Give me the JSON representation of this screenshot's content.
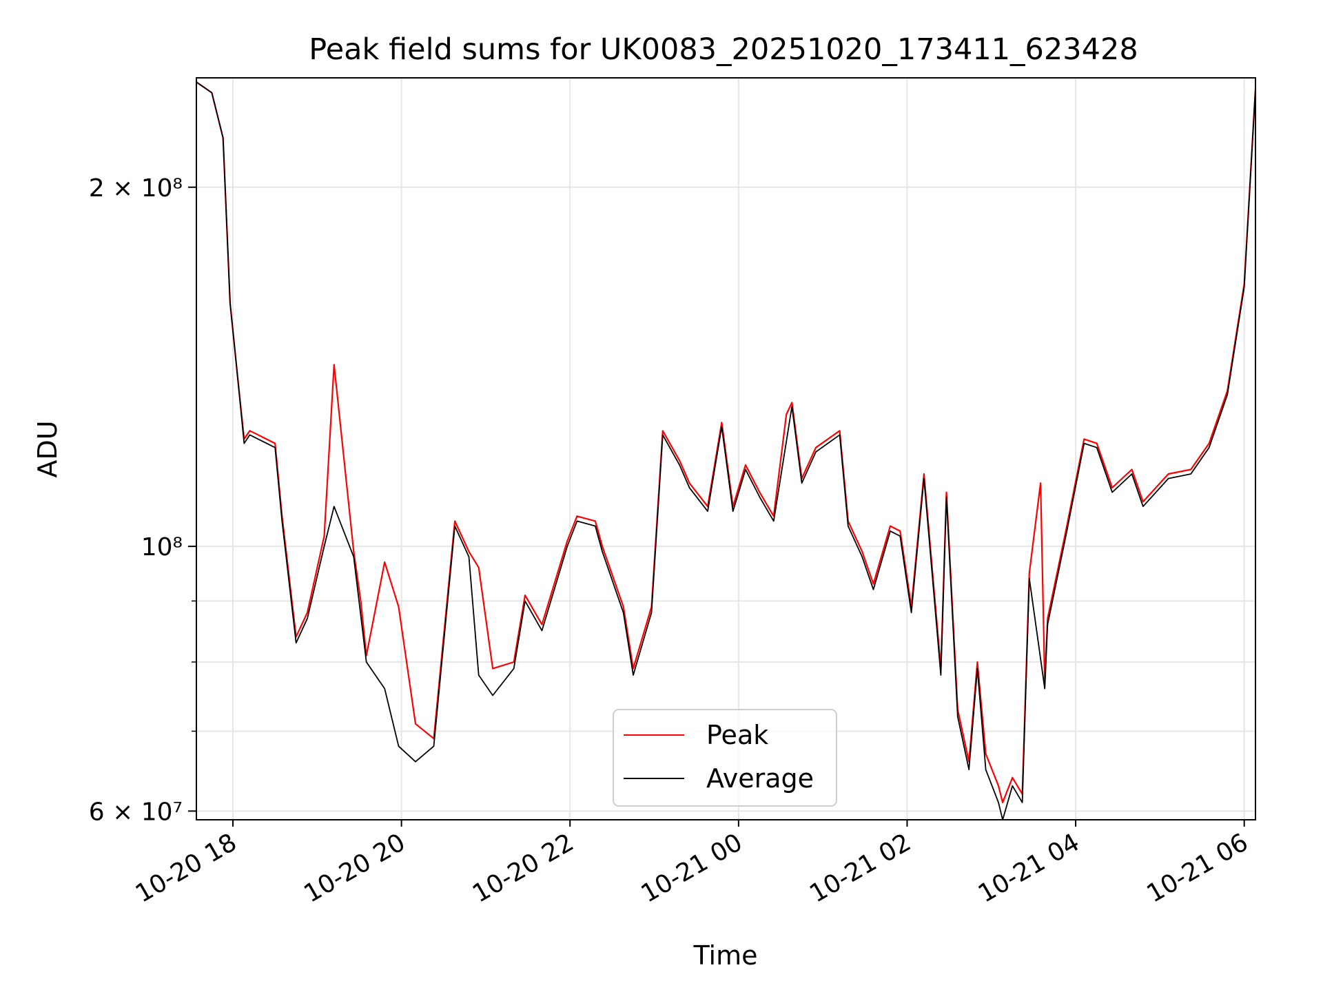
{
  "chart_data": {
    "type": "line",
    "title": "Peak field sums for UK0083_20251020_173411_623428",
    "xlabel": "Time",
    "ylabel": "ADU",
    "yscale": "log",
    "xlim": [
      "2025-10-20 17:34",
      "2025-10-21 06:08"
    ],
    "ylim": [
      59000000,
      247000000
    ],
    "grid": true,
    "legend": {
      "placement": "lower-center",
      "entries": [
        "Peak",
        "Average"
      ]
    },
    "x_ticks": [
      "10-20 18",
      "10-20 20",
      "10-20 22",
      "10-21 00",
      "10-21 02",
      "10-21 04",
      "10-21 06"
    ],
    "y_ticks": [
      {
        "value": 60000000,
        "label": "6 × 10⁷"
      },
      {
        "value": 100000000,
        "label": "10⁸"
      },
      {
        "value": 200000000,
        "label": "2 × 10⁸"
      }
    ],
    "colors": {
      "Peak": "#ff0000",
      "Average": "#000000"
    },
    "series": [
      {
        "name": "Average",
        "x": [
          "2025-10-20 17:34",
          "2025-10-20 17:45",
          "2025-10-20 17:53",
          "2025-10-20 17:58",
          "2025-10-20 18:03",
          "2025-10-20 18:08",
          "2025-10-20 18:12",
          "2025-10-20 18:18",
          "2025-10-20 18:30",
          "2025-10-20 18:35",
          "2025-10-20 18:45",
          "2025-10-20 18:53",
          "2025-10-20 19:05",
          "2025-10-20 19:12",
          "2025-10-20 19:26",
          "2025-10-20 19:35",
          "2025-10-20 19:48",
          "2025-10-20 19:58",
          "2025-10-20 20:10",
          "2025-10-20 20:23",
          "2025-10-20 20:38",
          "2025-10-20 20:48",
          "2025-10-20 20:55",
          "2025-10-20 21:05",
          "2025-10-20 21:20",
          "2025-10-20 21:28",
          "2025-10-20 21:40",
          "2025-10-20 21:58",
          "2025-10-20 22:05",
          "2025-10-20 22:18",
          "2025-10-20 22:23",
          "2025-10-20 22:38",
          "2025-10-20 22:45",
          "2025-10-20 22:58",
          "2025-10-20 23:06",
          "2025-10-20 23:18",
          "2025-10-20 23:25",
          "2025-10-20 23:38",
          "2025-10-20 23:48",
          "2025-10-20 23:56",
          "2025-10-21 00:05",
          "2025-10-21 00:15",
          "2025-10-21 00:25",
          "2025-10-21 00:38",
          "2025-10-21 00:45",
          "2025-10-21 00:55",
          "2025-10-21 01:12",
          "2025-10-21 01:18",
          "2025-10-21 01:28",
          "2025-10-21 01:36",
          "2025-10-21 01:48",
          "2025-10-21 01:55",
          "2025-10-21 02:03",
          "2025-10-21 02:12",
          "2025-10-21 02:24",
          "2025-10-21 02:28",
          "2025-10-21 02:36",
          "2025-10-21 02:44",
          "2025-10-21 02:50",
          "2025-10-21 02:56",
          "2025-10-21 03:05",
          "2025-10-21 03:08",
          "2025-10-21 03:15",
          "2025-10-21 03:22",
          "2025-10-21 03:27",
          "2025-10-21 03:38",
          "2025-10-21 03:40",
          "2025-10-21 03:53",
          "2025-10-21 04:06",
          "2025-10-21 04:15",
          "2025-10-21 04:26",
          "2025-10-21 04:40",
          "2025-10-21 04:48",
          "2025-10-21 05:06",
          "2025-10-21 05:22",
          "2025-10-21 05:35",
          "2025-10-21 05:48",
          "2025-10-21 06:00",
          "2025-10-21 06:08"
        ],
        "y": [
          245000000,
          240000000,
          220000000,
          160000000,
          140000000,
          122000000,
          124000000,
          123000000,
          121000000,
          105000000,
          83000000,
          87000000,
          100000000,
          108000000,
          98000000,
          80000000,
          76000000,
          68000000,
          66000000,
          68000000,
          104000000,
          98000000,
          78000000,
          75000000,
          79000000,
          90000000,
          85000000,
          100000000,
          105000000,
          104000000,
          99000000,
          88000000,
          78000000,
          88000000,
          124000000,
          117000000,
          112000000,
          107000000,
          126000000,
          107000000,
          116000000,
          110000000,
          105000000,
          131000000,
          113000000,
          120000000,
          124000000,
          104000000,
          98000000,
          92000000,
          103000000,
          102000000,
          88000000,
          114000000,
          78000000,
          110000000,
          72000000,
          65000000,
          79000000,
          65000000,
          61000000,
          59000000,
          63000000,
          61000000,
          94000000,
          76000000,
          86000000,
          102000000,
          122000000,
          121000000,
          111000000,
          115000000,
          108000000,
          114000000,
          115000000,
          121000000,
          134000000,
          165000000,
          242000000
        ]
      },
      {
        "name": "Peak",
        "x": [
          "2025-10-20 17:34",
          "2025-10-20 17:45",
          "2025-10-20 17:53",
          "2025-10-20 17:58",
          "2025-10-20 18:03",
          "2025-10-20 18:08",
          "2025-10-20 18:12",
          "2025-10-20 18:18",
          "2025-10-20 18:30",
          "2025-10-20 18:35",
          "2025-10-20 18:45",
          "2025-10-20 18:53",
          "2025-10-20 19:05",
          "2025-10-20 19:12",
          "2025-10-20 19:26",
          "2025-10-20 19:31",
          "2025-10-20 19:35",
          "2025-10-20 19:48",
          "2025-10-20 19:58",
          "2025-10-20 20:10",
          "2025-10-20 20:23",
          "2025-10-20 20:38",
          "2025-10-20 20:48",
          "2025-10-20 20:55",
          "2025-10-20 21:05",
          "2025-10-20 21:20",
          "2025-10-20 21:28",
          "2025-10-20 21:40",
          "2025-10-20 21:58",
          "2025-10-20 22:05",
          "2025-10-20 22:18",
          "2025-10-20 22:23",
          "2025-10-20 22:38",
          "2025-10-20 22:45",
          "2025-10-20 22:58",
          "2025-10-20 23:06",
          "2025-10-20 23:18",
          "2025-10-20 23:25",
          "2025-10-20 23:38",
          "2025-10-20 23:48",
          "2025-10-20 23:56",
          "2025-10-21 00:05",
          "2025-10-21 00:15",
          "2025-10-21 00:25",
          "2025-10-21 00:34",
          "2025-10-21 00:38",
          "2025-10-21 00:45",
          "2025-10-21 00:55",
          "2025-10-21 01:12",
          "2025-10-21 01:18",
          "2025-10-21 01:28",
          "2025-10-21 01:36",
          "2025-10-21 01:48",
          "2025-10-21 01:55",
          "2025-10-21 02:03",
          "2025-10-21 02:12",
          "2025-10-21 02:24",
          "2025-10-21 02:28",
          "2025-10-21 02:36",
          "2025-10-21 02:44",
          "2025-10-21 02:50",
          "2025-10-21 02:56",
          "2025-10-21 03:05",
          "2025-10-21 03:08",
          "2025-10-21 03:15",
          "2025-10-21 03:22",
          "2025-10-21 03:27",
          "2025-10-21 03:35",
          "2025-10-21 03:38",
          "2025-10-21 03:40",
          "2025-10-21 03:53",
          "2025-10-21 04:06",
          "2025-10-21 04:15",
          "2025-10-21 04:26",
          "2025-10-21 04:40",
          "2025-10-21 04:48",
          "2025-10-21 05:06",
          "2025-10-21 05:22",
          "2025-10-21 05:35",
          "2025-10-21 05:48",
          "2025-10-21 06:00",
          "2025-10-21 06:08"
        ],
        "y": [
          245000000,
          240000000,
          220000000,
          160000000,
          140000000,
          123000000,
          125000000,
          124000000,
          122000000,
          106000000,
          84000000,
          88000000,
          102000000,
          142000000,
          99000000,
          90000000,
          81000000,
          97000000,
          89000000,
          71000000,
          69000000,
          105000000,
          99000000,
          96000000,
          79000000,
          80000000,
          91000000,
          86000000,
          101000000,
          106000000,
          105000000,
          100000000,
          89000000,
          79000000,
          89000000,
          125000000,
          118000000,
          113000000,
          108000000,
          127000000,
          108000000,
          117000000,
          111000000,
          106000000,
          129000000,
          132000000,
          114000000,
          121000000,
          125000000,
          105000000,
          99000000,
          93000000,
          104000000,
          103000000,
          89000000,
          115000000,
          79000000,
          111000000,
          73000000,
          66000000,
          80000000,
          67000000,
          63000000,
          61000000,
          64000000,
          62000000,
          95000000,
          113000000,
          77000000,
          87000000,
          103000000,
          123000000,
          122000000,
          112000000,
          116000000,
          109000000,
          115000000,
          116000000,
          122000000,
          135000000,
          166000000,
          242000000
        ]
      }
    ]
  }
}
